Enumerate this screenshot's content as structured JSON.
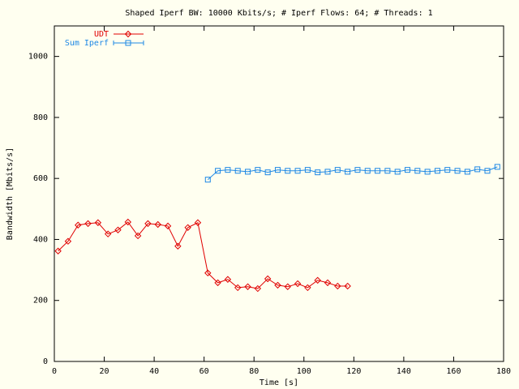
{
  "chart_data": {
    "type": "line",
    "title": "Shaped Iperf BW: 10000 Kbits/s; # Iperf Flows: 64; # Threads: 1",
    "x_label": "Time [s]",
    "y_label": "Bandwidth [Mbits/s]",
    "xlim": [
      0,
      180
    ],
    "ylim": [
      0,
      1100
    ],
    "xticks": [
      0,
      20,
      40,
      60,
      80,
      100,
      120,
      140,
      160,
      180
    ],
    "yticks": [
      0,
      200,
      400,
      600,
      800,
      1000
    ],
    "legend": "top-left",
    "series": [
      {
        "name": "UDT",
        "color": "#e00000",
        "marker": "diamond",
        "x": [
          1.5,
          5.5,
          9.5,
          13.5,
          17.5,
          21.5,
          25.5,
          29.5,
          33.5,
          37.5,
          41.5,
          45.5,
          49.5,
          53.5,
          57.5,
          61.5,
          65.5,
          69.5,
          73.5,
          77.5,
          81.5,
          85.5,
          89.5,
          93.5,
          97.5,
          101.5,
          105.5,
          109.5,
          113.5,
          117.5
        ],
        "values": [
          362,
          394,
          447,
          452,
          455,
          418,
          431,
          457,
          412,
          452,
          449,
          444,
          378,
          439,
          455,
          290,
          258,
          269,
          242,
          245,
          239,
          271,
          250,
          245,
          255,
          242,
          266,
          258,
          247,
          247
        ]
      },
      {
        "name": "Sum Iperf",
        "color": "#1e88e5",
        "marker": "square",
        "x": [
          61.5,
          65.5,
          69.5,
          73.5,
          77.5,
          81.5,
          85.5,
          89.5,
          93.5,
          97.5,
          101.5,
          105.5,
          109.5,
          113.5,
          117.5,
          121.5,
          125.5,
          129.5,
          133.5,
          137.5,
          141.5,
          145.5,
          149.5,
          153.5,
          157.5,
          161.5,
          165.5,
          169.5,
          173.5,
          177.5
        ],
        "values": [
          596,
          625,
          628,
          625,
          622,
          628,
          620,
          628,
          625,
          625,
          628,
          620,
          622,
          628,
          622,
          628,
          625,
          625,
          625,
          622,
          628,
          625,
          622,
          625,
          628,
          625,
          622,
          630,
          625,
          638
        ]
      }
    ]
  }
}
